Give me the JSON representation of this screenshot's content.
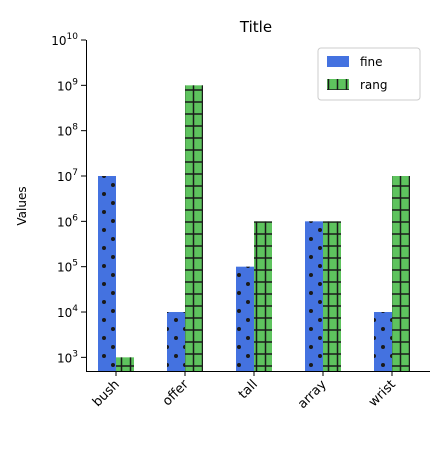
{
  "chart_data": {
    "type": "bar",
    "title": "Title",
    "xlabel": "",
    "ylabel": "Values",
    "yscale": "log",
    "ylim": [
      500,
      10000000000
    ],
    "categories": [
      "bush",
      "offer",
      "tall",
      "array",
      "wrist"
    ],
    "series": [
      {
        "name": "fine",
        "color": "#4472e0",
        "hatch": "dots",
        "values": [
          10000000,
          10000,
          100000,
          1000000,
          10000
        ]
      },
      {
        "name": "rang",
        "color": "#5ec35e",
        "hatch": "grid",
        "values": [
          1000,
          1000000000,
          1000000,
          1000000,
          10000000
        ]
      }
    ],
    "y_ticks": [
      {
        "value": 1000,
        "base": "10",
        "exp": "3"
      },
      {
        "value": 10000,
        "base": "10",
        "exp": "4"
      },
      {
        "value": 100000,
        "base": "10",
        "exp": "5"
      },
      {
        "value": 1000000,
        "base": "10",
        "exp": "6"
      },
      {
        "value": 10000000,
        "base": "10",
        "exp": "7"
      },
      {
        "value": 100000000,
        "base": "10",
        "exp": "8"
      },
      {
        "value": 1000000000,
        "base": "10",
        "exp": "9"
      },
      {
        "value": 10000000000,
        "base": "10",
        "exp": "10"
      }
    ],
    "legend": {
      "placement": "top-right"
    },
    "grid": false
  }
}
